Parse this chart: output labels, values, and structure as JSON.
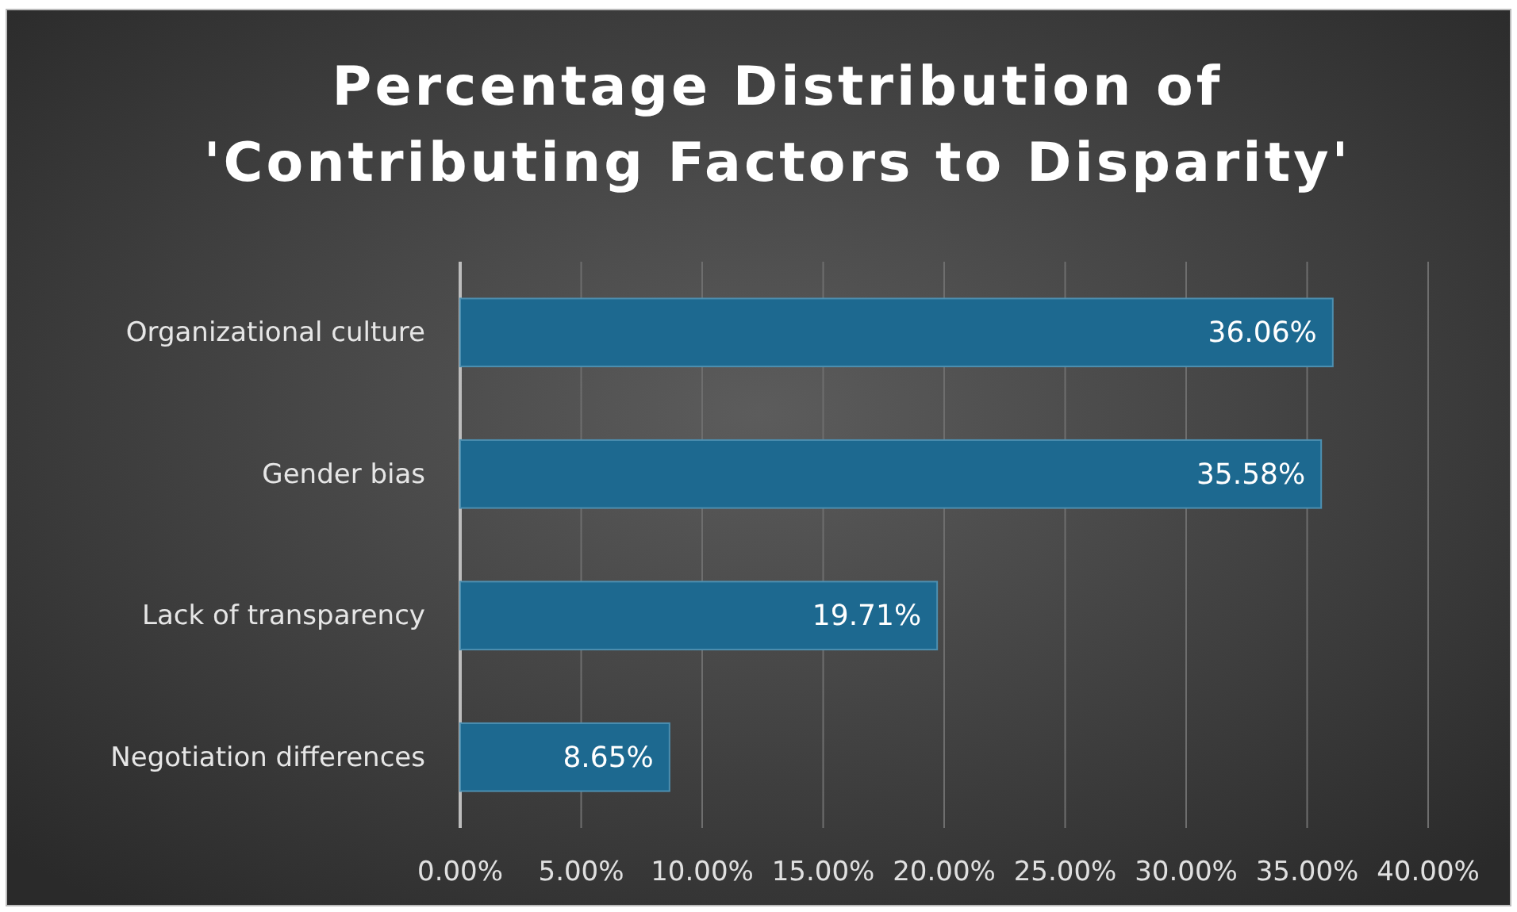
{
  "chart_data": {
    "type": "bar",
    "orientation": "horizontal",
    "title": "Percentage Distribution of\n'Contributing Factors to Disparity'",
    "categories": [
      "Organizational culture",
      "Gender bias",
      "Lack of transparency",
      "Negotiation differences"
    ],
    "values": [
      36.06,
      35.58,
      19.71,
      8.65
    ],
    "value_labels": [
      "36.06%",
      "35.58%",
      "19.71%",
      "8.65%"
    ],
    "color": "#1d6990",
    "xlim": [
      0,
      40
    ],
    "xticks": [
      {
        "value": 0,
        "label": "0.00%"
      },
      {
        "value": 5,
        "label": "5.00%"
      },
      {
        "value": 10,
        "label": "10.00%"
      },
      {
        "value": 15,
        "label": "15.00%"
      },
      {
        "value": 20,
        "label": "20.00%"
      },
      {
        "value": 25,
        "label": "25.00%"
      },
      {
        "value": 30,
        "label": "30.00%"
      },
      {
        "value": 35,
        "label": "35.00%"
      },
      {
        "value": 40,
        "label": "40.00%"
      }
    ],
    "grid": "x"
  }
}
